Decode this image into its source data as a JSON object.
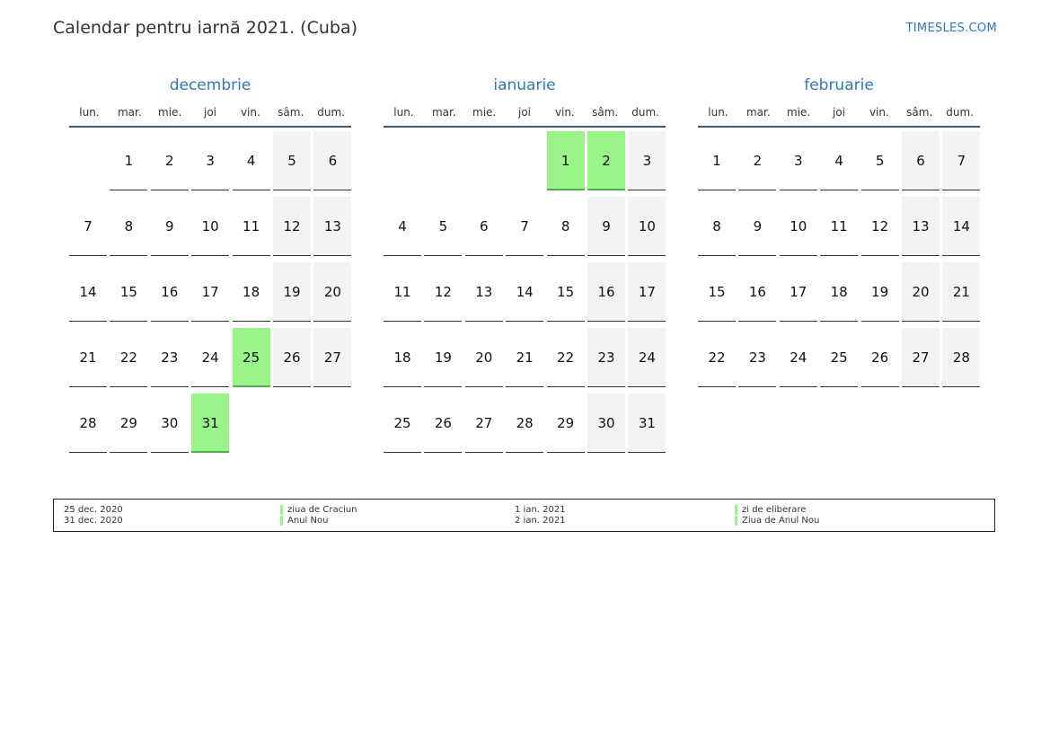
{
  "header": {
    "title": "Calendar pentru iarnă 2021. (Cuba)",
    "brand": "TIMESLES.COM"
  },
  "weekdays": [
    "lun.",
    "mar.",
    "mie.",
    "joi",
    "vin.",
    "sâm.",
    "dum."
  ],
  "months": [
    {
      "name": "decembrie",
      "start_offset": 1,
      "days": 31,
      "holidays": [
        25,
        31
      ]
    },
    {
      "name": "ianuarie",
      "start_offset": 4,
      "days": 31,
      "holidays": [
        1,
        2
      ]
    },
    {
      "name": "februarie",
      "start_offset": 0,
      "days": 28,
      "holidays": []
    }
  ],
  "legend": [
    {
      "date": "25 dec. 2020",
      "name": "ziua de Craciun"
    },
    {
      "date": "31 dec. 2020",
      "name": "Anul Nou"
    },
    {
      "date": "1 ian. 2021",
      "name": "zi de eliberare"
    },
    {
      "date": "2 ian. 2021",
      "name": "Ziua de Anul Nou"
    }
  ],
  "colors": {
    "accent": "#2f78b7",
    "holiday": "#99f58a",
    "weekend": "#f3f3f3"
  }
}
